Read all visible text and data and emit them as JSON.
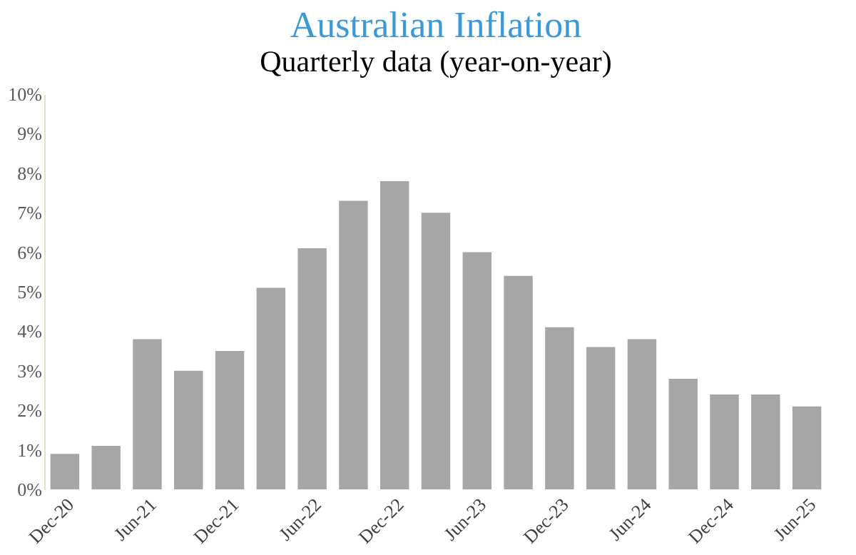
{
  "chart_data": {
    "type": "bar",
    "title": "Australian Inflation",
    "subtitle": "Quarterly data (year-on-year)",
    "categories": [
      "Dec-20",
      null,
      "Jun-21",
      null,
      "Dec-21",
      null,
      "Jun-22",
      null,
      "Dec-22",
      null,
      "Jun-23",
      null,
      "Dec-23",
      null,
      "Jun-24",
      null,
      "Dec-24",
      null,
      "Jun-25"
    ],
    "values": [
      0.9,
      1.1,
      3.8,
      3.0,
      3.5,
      5.1,
      6.1,
      7.3,
      7.8,
      7.0,
      6.0,
      5.4,
      4.1,
      3.6,
      3.8,
      2.8,
      2.4,
      2.4,
      2.1
    ],
    "color": "#a6a6a6",
    "ylim": [
      0,
      10
    ],
    "yticks": [
      {
        "value": 0,
        "label": "0%"
      },
      {
        "value": 1,
        "label": "1%"
      },
      {
        "value": 2,
        "label": "2%"
      },
      {
        "value": 3,
        "label": "3%"
      },
      {
        "value": 4,
        "label": "4%"
      },
      {
        "value": 5,
        "label": "5%"
      },
      {
        "value": 6,
        "label": "6%"
      },
      {
        "value": 7,
        "label": "7%"
      },
      {
        "value": 8,
        "label": "8%"
      },
      {
        "value": 9,
        "label": "9%"
      },
      {
        "value": 10,
        "label": "10%"
      }
    ],
    "grid": false
  }
}
